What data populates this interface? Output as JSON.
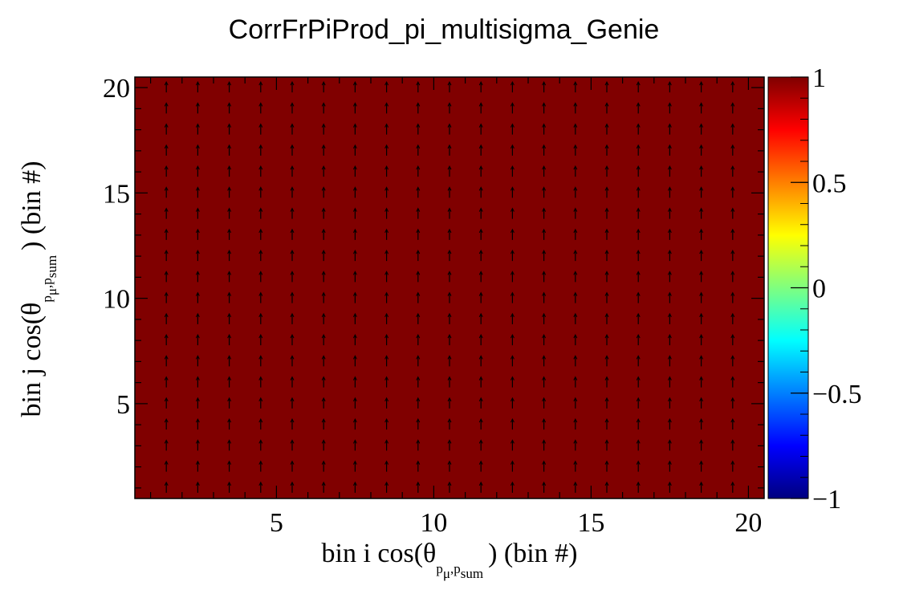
{
  "chart_data": {
    "type": "heatmap",
    "title": "CorrFrPiProd_pi_multisigma_Genie",
    "xlabel": {
      "prefix": "bin i cos(θ",
      "sub_a": "p",
      "sub_mu": "μ",
      "sub_sep": ",",
      "sub_b": "p",
      "sub_sum": "sum",
      "suffix": ") (bin #)"
    },
    "ylabel": {
      "prefix": "bin j cos(θ",
      "sub_a": "p",
      "sub_mu": "μ",
      "sub_sep": ",",
      "sub_b": "p",
      "sub_sum": "sum",
      "suffix": ") (bin #)"
    },
    "xlim": [
      0.5,
      20.5
    ],
    "ylim": [
      0.5,
      20.5
    ],
    "n_bins_x": 20,
    "n_bins_y": 20,
    "value_all_cells": 1,
    "xticks": [
      5,
      10,
      15,
      20
    ],
    "yticks": [
      5,
      10,
      15,
      20
    ],
    "colorbar": {
      "range": [
        -1,
        1
      ],
      "ticks": [
        1,
        0.5,
        0,
        -0.5,
        -1
      ],
      "tick_labels": [
        "1",
        "0.5",
        "0",
        "−0.5",
        "−1"
      ],
      "palette": [
        "#00007f",
        "#0000ff",
        "#007fff",
        "#00ffff",
        "#7fff7f",
        "#ffff00",
        "#ff7f00",
        "#ff0000",
        "#7f0000"
      ]
    },
    "cell_color": "#800000",
    "arrow_color": "#000000"
  }
}
